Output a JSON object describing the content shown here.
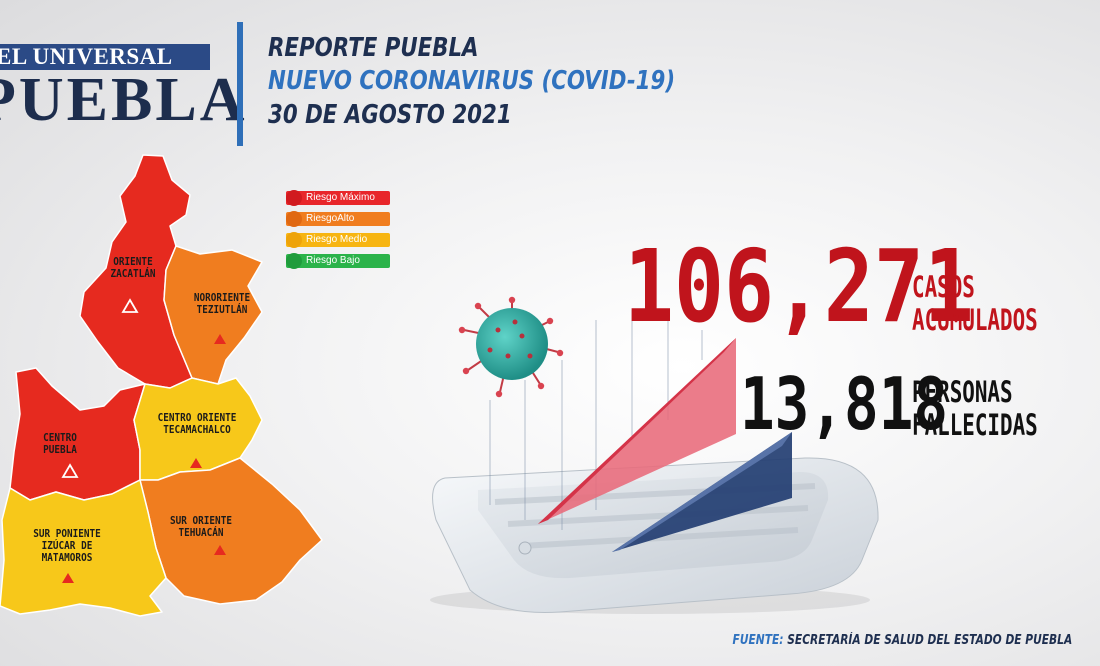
{
  "brand": {
    "line1": "EL UNIVERSAL",
    "line2": "PUEBLA"
  },
  "header": {
    "line1": "REPORTE PUEBLA",
    "line2": "NUEVO CORONAVIRUS (COVID-19)",
    "line3": "30 DE AGOSTO 2021"
  },
  "legend": [
    {
      "label": "Riesgo Máximo",
      "color": "#e8262a"
    },
    {
      "label": "RiesgoAlto",
      "color": "#f07d1f"
    },
    {
      "label": "Riesgo Medio",
      "color": "#f7b512"
    },
    {
      "label": "Riesgo Bajo",
      "color": "#2bb34a"
    }
  ],
  "regions": [
    {
      "name": "ORIENTE ZACATLÁN",
      "line1": "ORIENTE",
      "line2": "ZACATLÁN",
      "risk": "max",
      "icon": "triangle-outline-icon"
    },
    {
      "name": "NORORIENTE TEZIUTLÁN",
      "line1": "NORORIENTE",
      "line2": "TEZIUTLÁN",
      "risk": "alto",
      "icon": "triangle-filled-icon"
    },
    {
      "name": "CENTRO PUEBLA",
      "line1": "CENTRO",
      "line2": "PUEBLA",
      "risk": "max",
      "icon": "triangle-outline-icon"
    },
    {
      "name": "CENTRO ORIENTE TECAMACHALCO",
      "line1": "CENTRO ORIENTE",
      "line2": "TECAMACHALCO",
      "risk": "medio",
      "icon": "triangle-filled-icon"
    },
    {
      "name": "SUR PONIENTE IZÚCAR DE MATAMOROS",
      "line1": "SUR PONIENTE",
      "line2": "IZÚCAR DE",
      "line3": "MATAMOROS",
      "risk": "medio",
      "icon": "triangle-filled-icon"
    },
    {
      "name": "SUR ORIENTE TEHUACÁN",
      "line1": "SUR ORIENTE",
      "line2": "TEHUACÁN",
      "risk": "alto",
      "icon": "triangle-filled-icon"
    }
  ],
  "stats": {
    "cases": {
      "value": "106,271",
      "label1": "CASOS",
      "label2": "ACUMULADOS"
    },
    "deaths": {
      "value": "13,818",
      "label1": "PERSONAS",
      "label2": "FALLECIDAS"
    }
  },
  "source": {
    "key": "FUENTE:",
    "text": "SECRETARÍA DE SALUD DEL ESTADO DE PUEBLA"
  },
  "colors": {
    "red": "#e8262a",
    "orange": "#f07d1f",
    "yellow": "#f7c81a",
    "navy": "#1e2f50",
    "blue": "#2f72bf",
    "cases": "#c0141c"
  }
}
